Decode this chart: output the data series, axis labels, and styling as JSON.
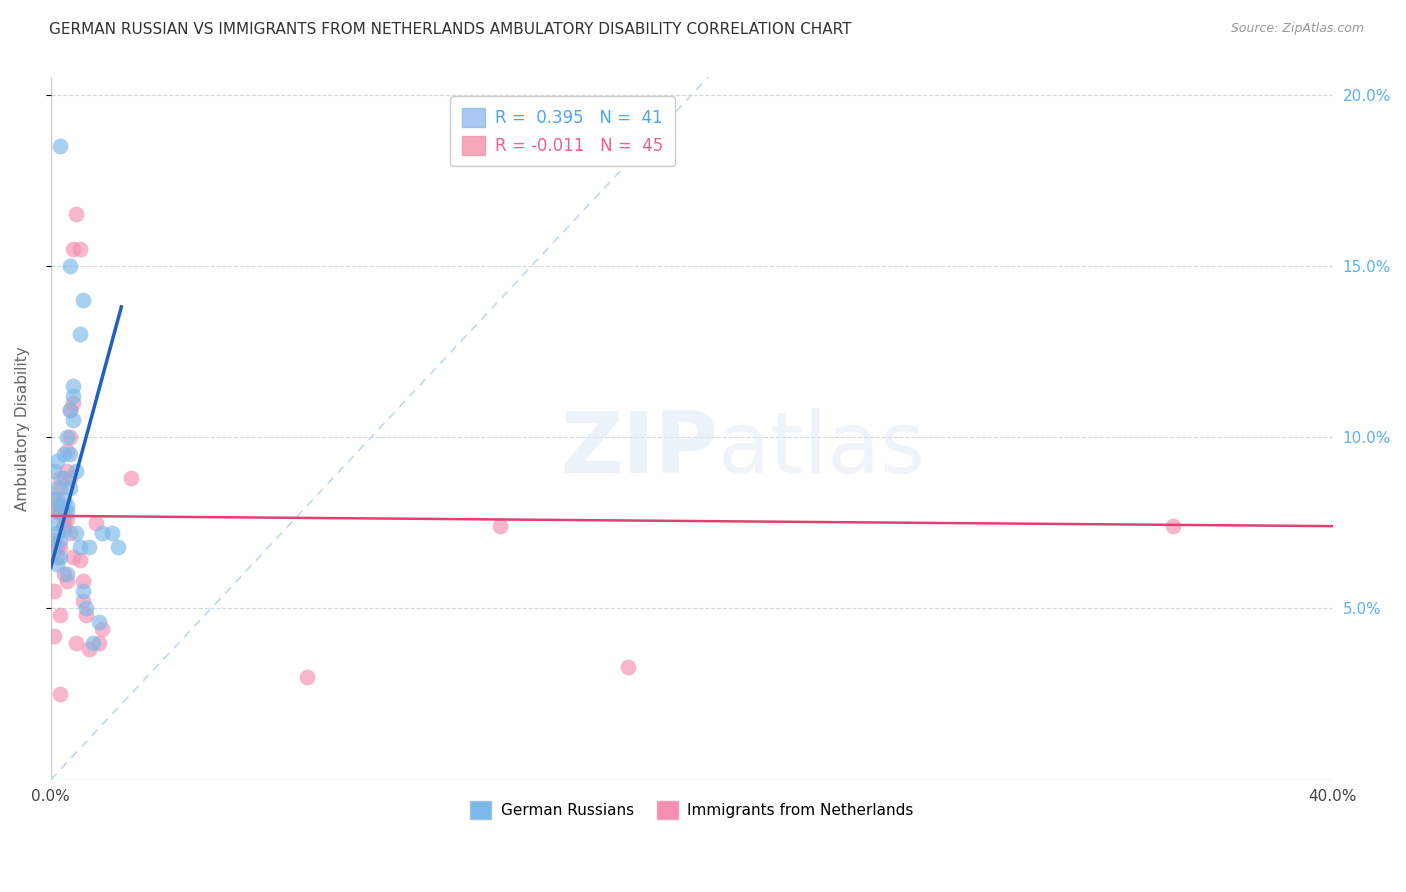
{
  "title": "GERMAN RUSSIAN VS IMMIGRANTS FROM NETHERLANDS AMBULATORY DISABILITY CORRELATION CHART",
  "source": "Source: ZipAtlas.com",
  "ylabel": "Ambulatory Disability",
  "watermark_zip": "ZIP",
  "watermark_atlas": "atlas",
  "legend_entry1_label": "R =  0.395   N =  41",
  "legend_entry2_label": "R = -0.011   N =  45",
  "legend_entry1_color": "#a8c8f0",
  "legend_entry2_color": "#f4a8b8",
  "series1_color": "#7ab8e8",
  "series2_color": "#f48fb1",
  "trendline1_color": "#2060c0",
  "trendline2_color": "#e04070",
  "diagonal_color": "#c0d8f0",
  "x_min": 0.0,
  "x_max": 0.4,
  "y_min": 0.0,
  "y_max": 0.205,
  "series1_x": [
    0.001,
    0.001,
    0.001,
    0.001,
    0.002,
    0.002,
    0.002,
    0.002,
    0.003,
    0.003,
    0.003,
    0.003,
    0.004,
    0.004,
    0.004,
    0.004,
    0.005,
    0.005,
    0.005,
    0.005,
    0.006,
    0.006,
    0.006,
    0.007,
    0.007,
    0.007,
    0.008,
    0.008,
    0.009,
    0.009,
    0.01,
    0.01,
    0.011,
    0.012,
    0.013,
    0.015,
    0.016,
    0.003,
    0.019,
    0.006,
    0.021
  ],
  "series1_y": [
    0.075,
    0.068,
    0.082,
    0.09,
    0.063,
    0.072,
    0.085,
    0.093,
    0.078,
    0.065,
    0.08,
    0.07,
    0.073,
    0.082,
    0.095,
    0.088,
    0.08,
    0.1,
    0.06,
    0.078,
    0.095,
    0.108,
    0.085,
    0.105,
    0.112,
    0.115,
    0.09,
    0.072,
    0.13,
    0.068,
    0.14,
    0.055,
    0.05,
    0.068,
    0.04,
    0.046,
    0.072,
    0.185,
    0.072,
    0.15,
    0.068
  ],
  "series2_x": [
    0.001,
    0.001,
    0.001,
    0.001,
    0.002,
    0.002,
    0.002,
    0.002,
    0.003,
    0.003,
    0.003,
    0.003,
    0.004,
    0.004,
    0.004,
    0.004,
    0.005,
    0.005,
    0.005,
    0.005,
    0.006,
    0.006,
    0.006,
    0.007,
    0.007,
    0.007,
    0.008,
    0.008,
    0.009,
    0.009,
    0.01,
    0.01,
    0.011,
    0.012,
    0.014,
    0.015,
    0.016,
    0.003,
    0.025,
    0.006,
    0.08,
    0.14,
    0.35,
    0.18,
    0.004
  ],
  "series2_y": [
    0.07,
    0.055,
    0.08,
    0.042,
    0.065,
    0.078,
    0.068,
    0.082,
    0.088,
    0.085,
    0.048,
    0.068,
    0.076,
    0.074,
    0.06,
    0.079,
    0.09,
    0.096,
    0.058,
    0.076,
    0.1,
    0.108,
    0.088,
    0.065,
    0.11,
    0.155,
    0.165,
    0.04,
    0.155,
    0.064,
    0.058,
    0.052,
    0.048,
    0.038,
    0.075,
    0.04,
    0.044,
    0.025,
    0.088,
    0.072,
    0.03,
    0.074,
    0.074,
    0.033,
    0.074
  ],
  "trendline1_x_start": 0.0,
  "trendline1_x_end": 0.022,
  "trendline1_y_start": 0.062,
  "trendline1_y_end": 0.138,
  "trendline2_x_start": 0.0,
  "trendline2_x_end": 0.4,
  "trendline2_y_start": 0.077,
  "trendline2_y_end": 0.074
}
